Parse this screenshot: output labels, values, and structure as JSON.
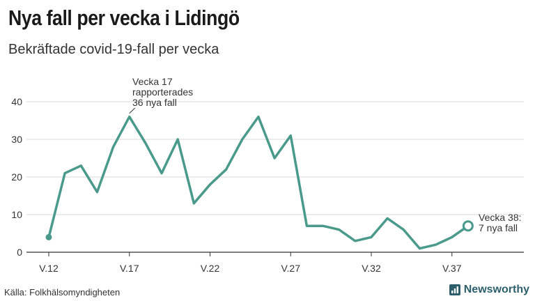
{
  "header": {
    "title": "Nya fall per vecka i Lidingö",
    "subtitle": "Bekräftade covid-19-fall per vecka"
  },
  "footer": {
    "source": "Källa: Folkhälsomyndigheten",
    "brand": "Newsworthy"
  },
  "colors": {
    "line": "#4a9a8c",
    "grid": "#d9d9d9",
    "text": "#333333"
  },
  "chart_data": {
    "type": "line",
    "title": "Nya fall per vecka i Lidingö",
    "subtitle": "Bekräftade covid-19-fall per vecka",
    "x": [
      12,
      13,
      14,
      15,
      16,
      17,
      18,
      19,
      20,
      21,
      22,
      23,
      24,
      25,
      26,
      27,
      28,
      29,
      30,
      31,
      32,
      33,
      34,
      35,
      36,
      37,
      38
    ],
    "series": [
      {
        "values": [
          4,
          21,
          23,
          16,
          28,
          36,
          29,
          21,
          30,
          13,
          18,
          22,
          30,
          36,
          25,
          31,
          7,
          7,
          6,
          3,
          4,
          9,
          6,
          1,
          2,
          4,
          7
        ]
      }
    ],
    "xticks": [
      "V.12",
      "V.17",
      "V.22",
      "V.27",
      "V.32",
      "V.37"
    ],
    "xtick_weeks": [
      12,
      17,
      22,
      27,
      32,
      37
    ],
    "yticks": [
      0,
      10,
      20,
      30,
      40
    ],
    "ylim": [
      0,
      40
    ],
    "grid": true,
    "annotations": [
      {
        "week": 17,
        "lines": [
          "Vecka 17",
          "rapporterades",
          "36 nya fall"
        ]
      },
      {
        "week": 38,
        "lines": [
          "Vecka 38:",
          "7 nya fall"
        ]
      }
    ]
  }
}
